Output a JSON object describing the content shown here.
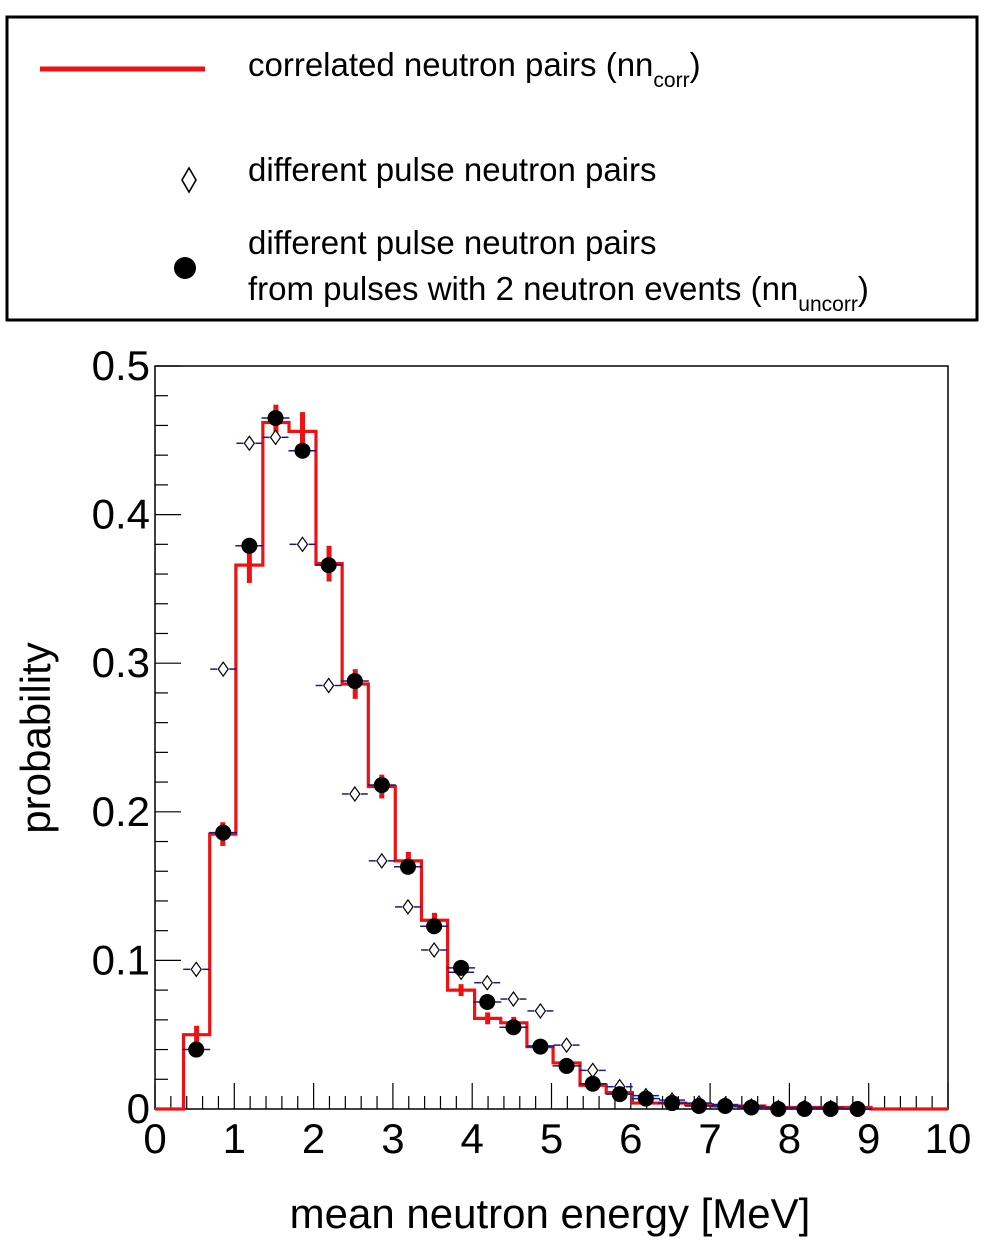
{
  "legend": {
    "items": [
      {
        "label": "correlated neutron pairs (nn",
        "sub": "corr",
        "tail": ")"
      },
      {
        "label": "different pulse neutron pairs"
      },
      {
        "label": "different pulse neutron pairs"
      },
      {
        "label": "from pulses with 2 neutron events (nn",
        "sub": "uncorr",
        "tail": ")"
      }
    ]
  },
  "chart_data": {
    "type": "line",
    "xlabel": "mean neutron energy [MeV]",
    "ylabel": "probability",
    "xlim": [
      0,
      10
    ],
    "ylim": [
      0,
      0.5
    ],
    "x_ticks": [
      "0",
      "1",
      "2",
      "3",
      "4",
      "5",
      "6",
      "7",
      "8",
      "9",
      "10"
    ],
    "y_ticks": [
      "0",
      "0.1",
      "0.2",
      "0.3",
      "0.4",
      "0.5"
    ],
    "colors": {
      "correlated": "#ee1111",
      "different_pulse_err": "#1a1a8c",
      "points": "#000000"
    },
    "series": [
      {
        "name": "correlated neutron pairs (nn_corr)",
        "style": "histogram",
        "bin_edges": [
          0.0,
          0.36,
          0.69,
          1.02,
          1.36,
          1.69,
          2.03,
          2.36,
          2.69,
          3.03,
          3.36,
          3.69,
          4.03,
          4.36,
          4.69,
          5.02,
          5.36,
          5.69,
          6.02,
          6.36,
          6.69,
          7.03,
          7.36,
          7.69,
          8.02,
          8.36,
          8.69,
          9.03,
          10.0
        ],
        "values": [
          0.0,
          0.05,
          0.185,
          0.366,
          0.462,
          0.456,
          0.367,
          0.286,
          0.217,
          0.167,
          0.127,
          0.08,
          0.061,
          0.058,
          0.042,
          0.031,
          0.016,
          0.011,
          0.004,
          0.004,
          0.003,
          0.002,
          0.002,
          0.001,
          0.001,
          0.001,
          0.001,
          0.0
        ],
        "errors": [
          0,
          0.006,
          0.008,
          0.012,
          0.012,
          0.013,
          0.012,
          0.01,
          0.008,
          0.006,
          0.005,
          0.004,
          0.004,
          0.004,
          0.003,
          0.002,
          0.002,
          0.002,
          0.001,
          0.001,
          0.001,
          0.001,
          0.001,
          0.001,
          0.001,
          0.001,
          0.001,
          0
        ]
      },
      {
        "name": "different pulse neutron pairs",
        "style": "open-diamond",
        "x": [
          0.52,
          0.86,
          1.19,
          1.52,
          1.86,
          2.19,
          2.52,
          2.86,
          3.19,
          3.52,
          3.86,
          4.19,
          4.52,
          4.86,
          5.19,
          5.52,
          5.86,
          6.19,
          6.52,
          6.86,
          7.19,
          7.52,
          7.86,
          8.19,
          8.52,
          8.86
        ],
        "values": [
          0.094,
          0.296,
          0.448,
          0.452,
          0.38,
          0.285,
          0.212,
          0.167,
          0.136,
          0.107,
          0.092,
          0.085,
          0.074,
          0.066,
          0.043,
          0.026,
          0.015,
          0.009,
          0.006,
          0.004,
          0.003,
          0.002,
          0.001,
          0.001,
          0.001,
          0.0
        ]
      },
      {
        "name": "different pulse neutron pairs from pulses with 2 neutron events (nn_uncorr)",
        "style": "filled-circle",
        "x": [
          0.52,
          0.86,
          1.19,
          1.52,
          1.86,
          2.19,
          2.52,
          2.86,
          3.19,
          3.52,
          3.86,
          4.19,
          4.52,
          4.86,
          5.19,
          5.52,
          5.86,
          6.19,
          6.52,
          6.86,
          7.19,
          7.52,
          7.86,
          8.19,
          8.52,
          8.86
        ],
        "values": [
          0.04,
          0.186,
          0.379,
          0.465,
          0.443,
          0.366,
          0.288,
          0.218,
          0.163,
          0.123,
          0.095,
          0.072,
          0.055,
          0.042,
          0.029,
          0.017,
          0.01,
          0.007,
          0.004,
          0.002,
          0.002,
          0.001,
          0.0,
          0.0,
          0.0,
          0.0
        ]
      }
    ]
  }
}
